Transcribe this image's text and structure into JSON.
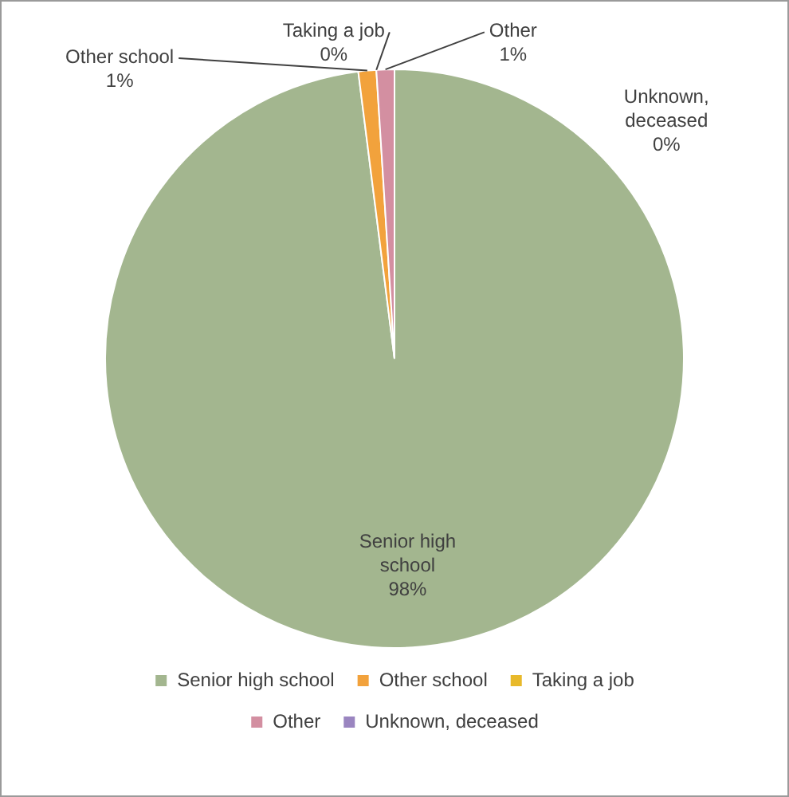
{
  "chart_data": {
    "type": "pie",
    "categories": [
      "Senior high school",
      "Other school",
      "Taking a job",
      "Other",
      "Unknown, deceased"
    ],
    "values": [
      98,
      1,
      0,
      1,
      0
    ],
    "value_labels": [
      "98%",
      "1%",
      "0%",
      "1%",
      "0%"
    ],
    "colors": [
      "#a3b68f",
      "#f2a23c",
      "#e8b92a",
      "#d38fa1",
      "#9a85c0"
    ],
    "legend": "bottom"
  }
}
